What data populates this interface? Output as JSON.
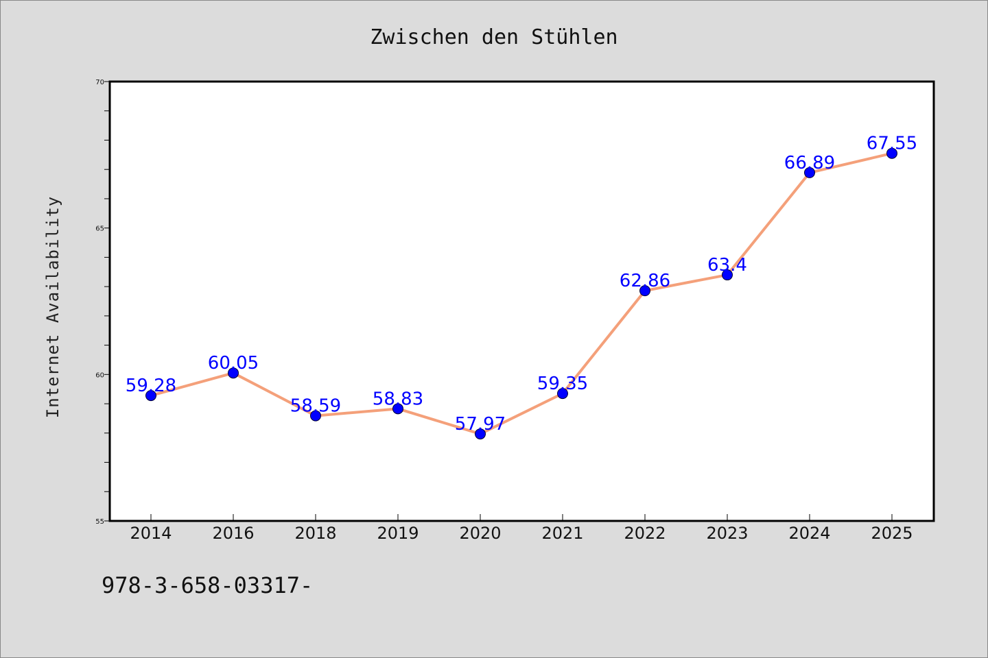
{
  "chart_data": {
    "type": "line",
    "title": "Zwischen den Stühlen",
    "xlabel": "",
    "ylabel": "Internet Availability",
    "categories": [
      "2014",
      "2016",
      "2018",
      "2019",
      "2020",
      "2021",
      "2022",
      "2023",
      "2024",
      "2025"
    ],
    "series": [
      {
        "values": [
          59.28,
          60.05,
          58.59,
          58.83,
          57.97,
          59.35,
          62.86,
          63.4,
          66.89,
          67.55
        ],
        "data_labels": [
          "59.28",
          "60.05",
          "58.59",
          "58.83",
          "57.97",
          "59.35",
          "62.86",
          "63.4",
          "66.89",
          "67.55"
        ],
        "line_color": "#f4a07a",
        "marker_color": "#0000ff"
      }
    ],
    "ylim": [
      55,
      70
    ],
    "y_tick_labels": [
      "55",
      "60",
      "65",
      "70"
    ],
    "y_ticks": [
      55,
      60,
      65,
      70
    ],
    "y_minor_step": 1,
    "grid": false,
    "legend": "none",
    "label_color": "#0000ff",
    "plot_background": "#ffffff",
    "page_background": "#dcdcdc"
  },
  "footer": {
    "text": "978-3-658-03317-"
  }
}
